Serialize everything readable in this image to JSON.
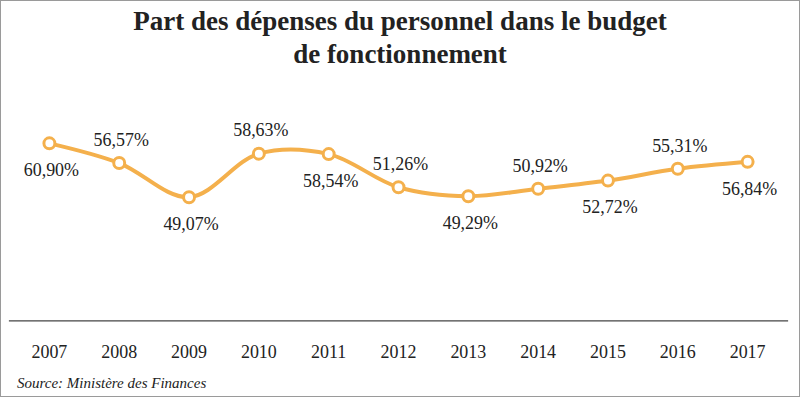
{
  "chart_data": {
    "type": "line",
    "title": [
      "Part des dépenses du personnel dans le budget",
      "de fonctionnement"
    ],
    "caption": "Source: Ministère des Finances",
    "categories": [
      "2007",
      "2008",
      "2009",
      "2010",
      "2011",
      "2012",
      "2013",
      "2014",
      "2015",
      "2016",
      "2017"
    ],
    "values": [
      60.9,
      56.57,
      49.07,
      58.63,
      58.54,
      51.26,
      49.29,
      50.92,
      52.72,
      55.31,
      56.84
    ],
    "value_labels": [
      "60,90%",
      "56,57%",
      "49,07%",
      "58,63%",
      "58,54%",
      "51,26%",
      "49,29%",
      "50,92%",
      "52,72%",
      "55,31%",
      "56,84%"
    ],
    "color": "#f4b04c",
    "marker": "circle",
    "line_style": "solid",
    "data_labels": true,
    "tick_labels": "x",
    "grid": false
  }
}
